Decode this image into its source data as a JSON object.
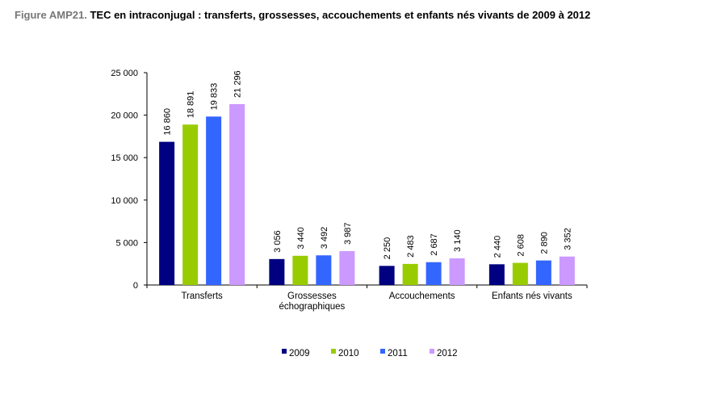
{
  "figure": {
    "label": "Figure AMP21.",
    "title": "TEC en intraconjugal : transferts, grossesses, accouchements et enfants nés vivants de 2009 à 2012"
  },
  "chart_data": {
    "type": "bar",
    "categories": [
      "Transferts",
      "Grossesses\néchographiques",
      "Accouchements",
      "Enfants nés vivants"
    ],
    "series": [
      {
        "name": "2009",
        "color": "#000080",
        "values": [
          16860,
          3056,
          2250,
          2440
        ],
        "labels": [
          "16 860",
          "3 056",
          "2 250",
          "2 440"
        ]
      },
      {
        "name": "2010",
        "color": "#99cc00",
        "values": [
          18891,
          3440,
          2483,
          2608
        ],
        "labels": [
          "18 891",
          "3 440",
          "2 483",
          "2 608"
        ]
      },
      {
        "name": "2011",
        "color": "#3366ff",
        "values": [
          19833,
          3492,
          2687,
          2890
        ],
        "labels": [
          "19 833",
          "3 492",
          "2 687",
          "2 890"
        ]
      },
      {
        "name": "2012",
        "color": "#cc99ff",
        "values": [
          21296,
          3987,
          3140,
          3352
        ],
        "labels": [
          "21 296",
          "3 987",
          "3 140",
          "3 352"
        ]
      }
    ],
    "yticks": [
      0,
      5000,
      10000,
      15000,
      20000,
      25000
    ],
    "ytick_labels": [
      "0",
      "5 000",
      "10 000",
      "15 000",
      "20 000",
      "25 000"
    ],
    "ylim": [
      0,
      25000
    ],
    "legend_position": "bottom",
    "grid": false
  }
}
